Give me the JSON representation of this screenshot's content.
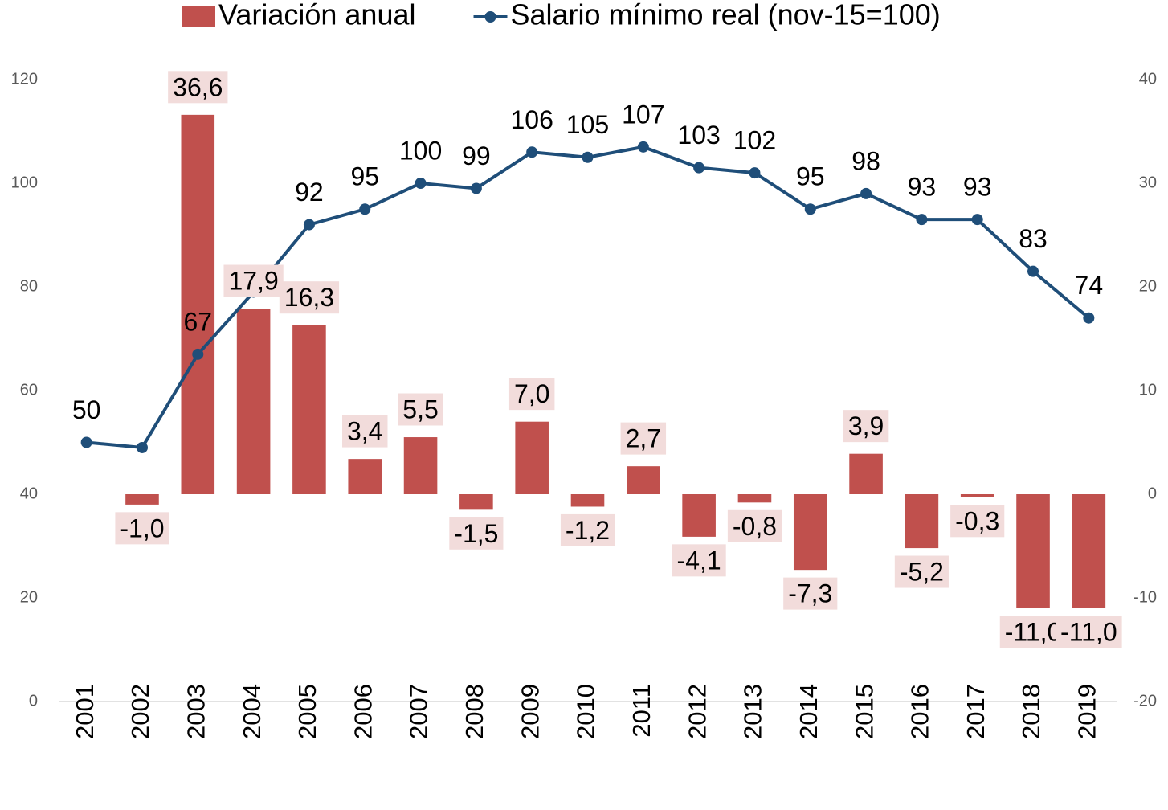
{
  "chart_data": {
    "type": "bar_line",
    "categories": [
      "2001",
      "2002",
      "2003",
      "2004",
      "2005",
      "2006",
      "2007",
      "2008",
      "2009",
      "2010",
      "2011",
      "2012",
      "2013",
      "2014",
      "2015",
      "2016",
      "2017",
      "2018",
      "2019"
    ],
    "series": [
      {
        "name": "Variación anual",
        "type": "bar",
        "axis": "y2",
        "color": "#c0504d",
        "values": [
          null,
          -1.0,
          36.6,
          17.9,
          16.3,
          3.4,
          5.5,
          -1.5,
          7.0,
          -1.2,
          2.7,
          -4.1,
          -0.8,
          -7.3,
          3.9,
          -5.2,
          -0.3,
          -11.0,
          -11.0
        ],
        "value_labels": [
          null,
          "-1,0",
          "36,6",
          "17,9",
          "16,3",
          "3,4",
          "5,5",
          "-1,5",
          "7,0",
          "-1,2",
          "2,7",
          "-4,1",
          "-0,8",
          "-7,3",
          "3,9",
          "-5,2",
          "-0,3",
          "-11,0",
          "-11,0"
        ]
      },
      {
        "name": "Salario mínimo real (nov-15=100)",
        "type": "line",
        "axis": "y",
        "color": "#1f4e79",
        "values": [
          50,
          49,
          67,
          79,
          92,
          95,
          100,
          99,
          106,
          105,
          107,
          103,
          102,
          95,
          98,
          93,
          93,
          83,
          74
        ],
        "value_labels": [
          "50",
          null,
          "67",
          null,
          "92",
          "95",
          "100",
          "99",
          "106",
          "105",
          "107",
          "103",
          "102",
          "95",
          "98",
          "93",
          "93",
          "83",
          "74"
        ]
      }
    ],
    "ylim": [
      0,
      120
    ],
    "yticks": [
      0,
      20,
      40,
      60,
      80,
      100,
      120
    ],
    "y2lim": [
      -20,
      40
    ],
    "y2ticks": [
      -20,
      -10,
      0,
      10,
      20,
      30,
      40
    ],
    "grid": false,
    "legend": "top"
  }
}
